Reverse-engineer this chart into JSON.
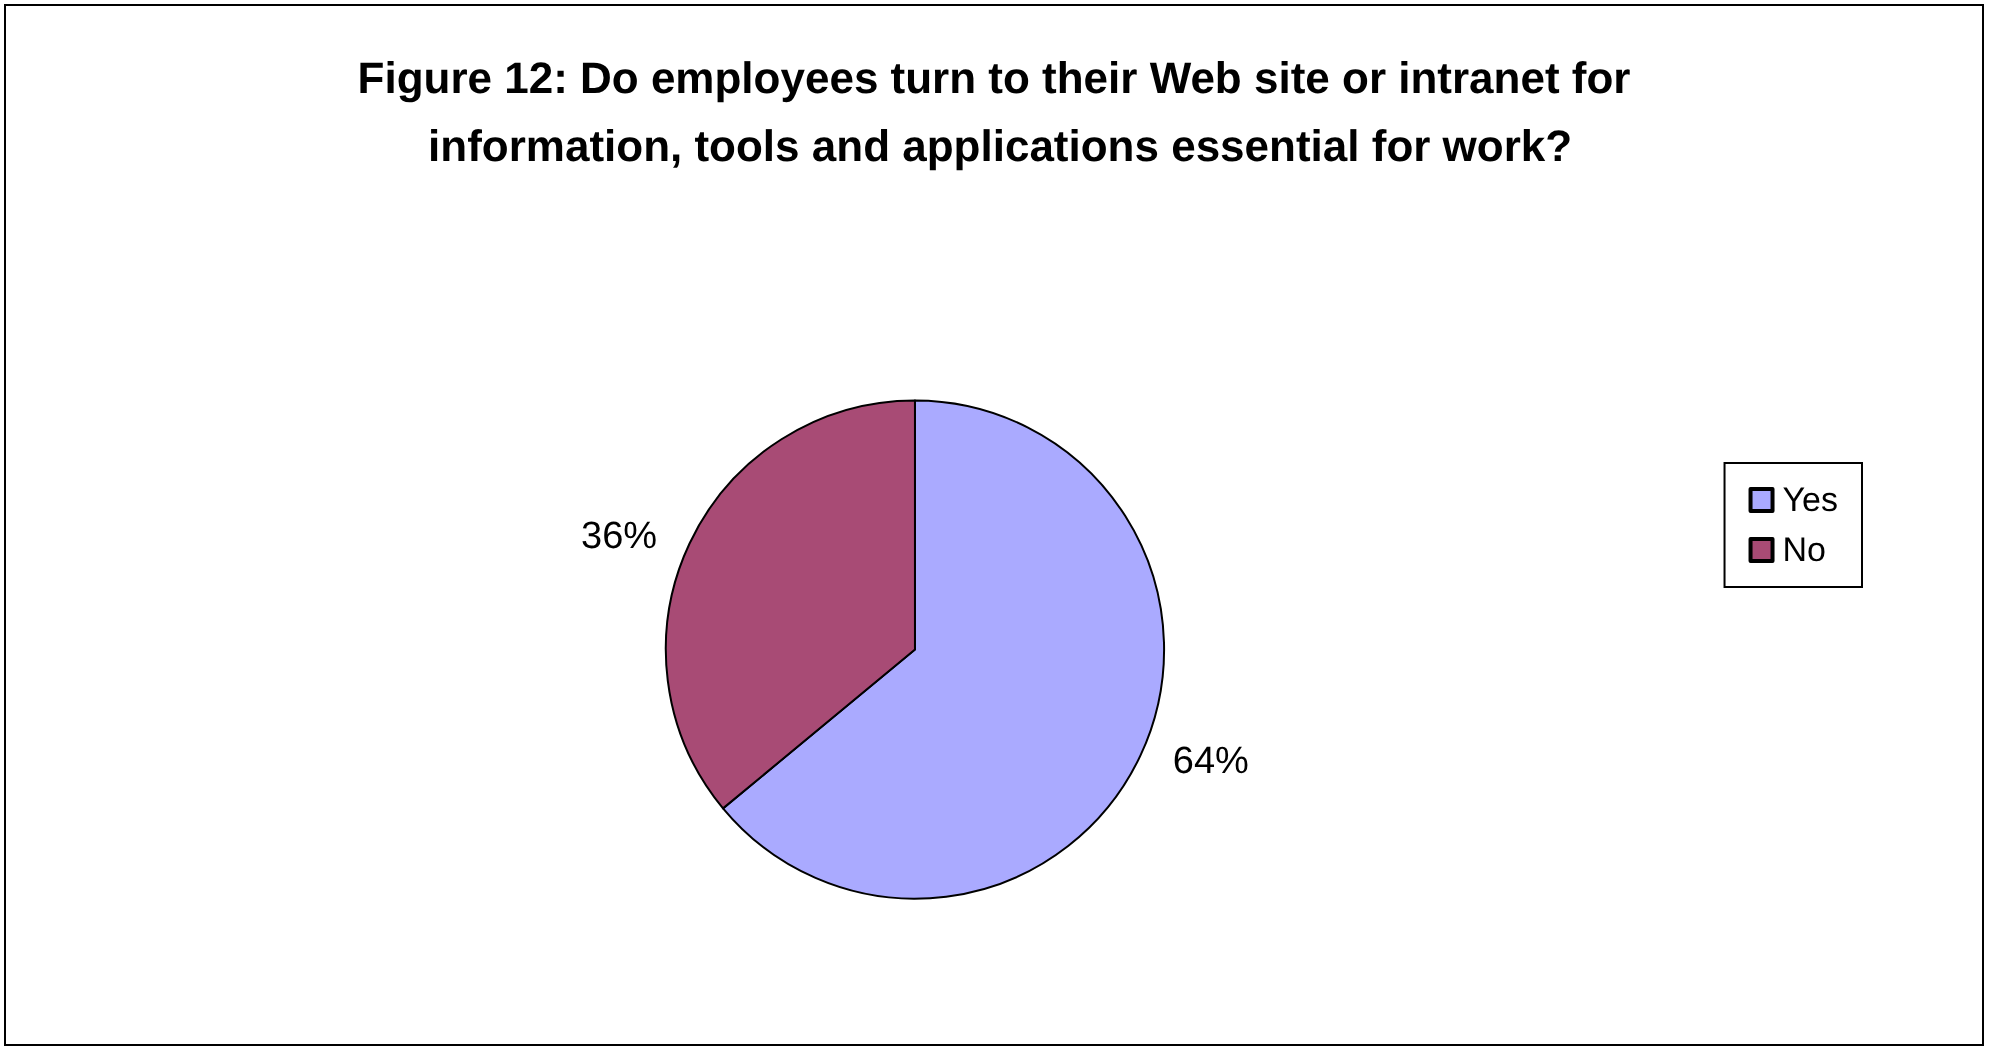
{
  "chart_data": {
    "type": "pie",
    "title": "Figure 12: Do employees turn to their Web site or intranet for information, tools and applications essential for work?",
    "categories": [
      "Yes",
      "No"
    ],
    "values": [
      64,
      36
    ],
    "value_labels": [
      "64%",
      "36%"
    ],
    "colors": [
      "#aaaaff",
      "#a84b75"
    ],
    "legend": "right"
  }
}
